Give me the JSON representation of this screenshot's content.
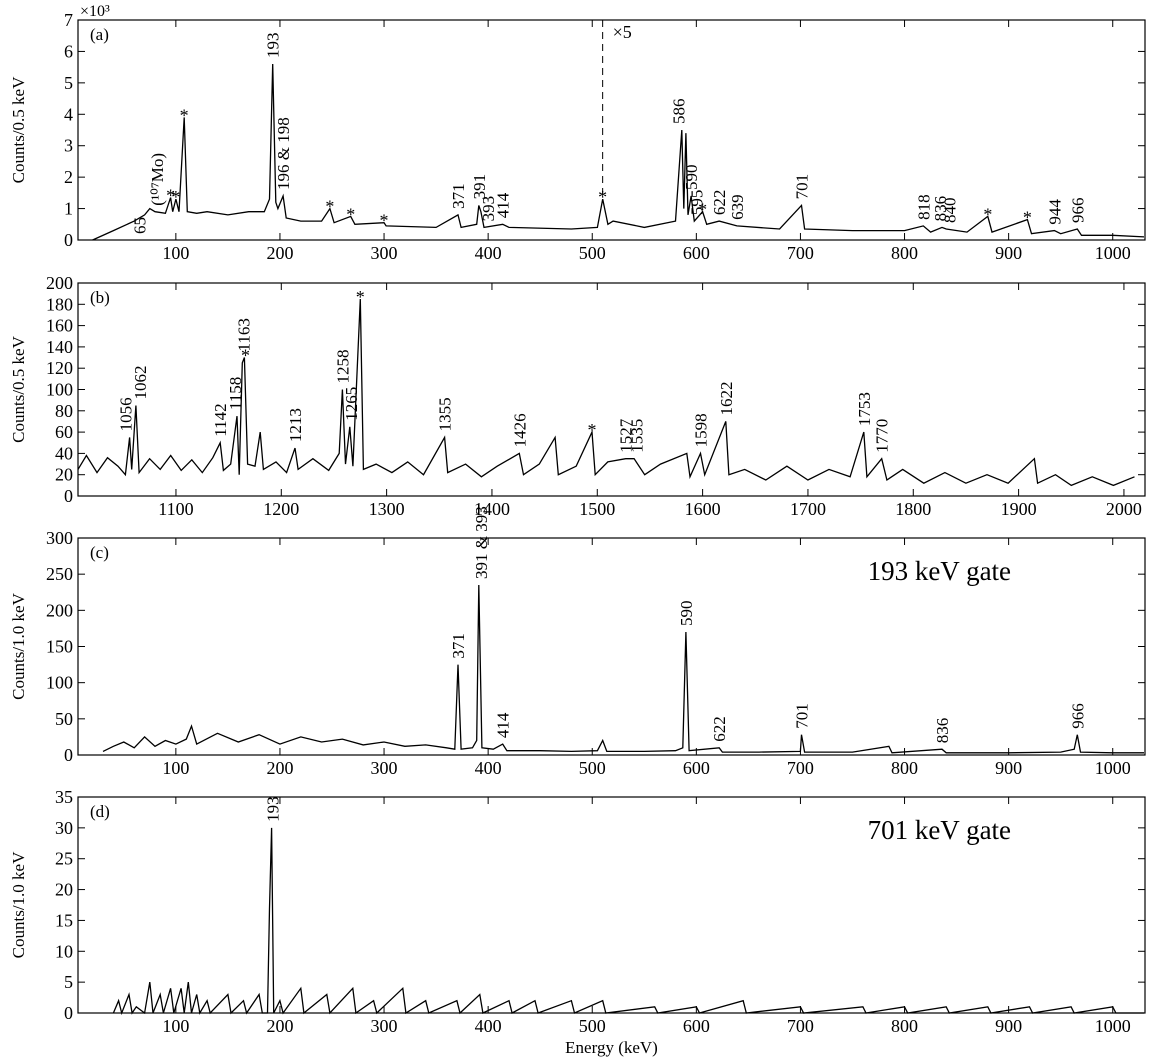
{
  "chart_data": [
    {
      "type": "line",
      "panel_label": "(a)",
      "ylabel": "Counts/0.5 keV",
      "y_scale_label": "×10³",
      "scale_change_label": "×5",
      "scale_change_x": 510,
      "xlim": [
        6,
        1031
      ],
      "ylim": [
        0,
        7
      ],
      "xticks": [
        100,
        200,
        300,
        400,
        500,
        600,
        700,
        800,
        900,
        1000
      ],
      "yticks": [
        0,
        1,
        2,
        3,
        4,
        5,
        6,
        7
      ],
      "color": "#000000",
      "x": [
        20,
        40,
        60,
        70,
        75,
        80,
        90,
        95,
        97,
        100,
        103,
        108,
        111,
        120,
        130,
        150,
        170,
        185,
        190,
        193,
        196,
        198,
        203,
        206,
        220,
        240,
        248,
        252,
        268,
        272,
        300,
        302,
        350,
        371,
        374,
        389,
        391,
        393,
        396,
        414,
        420,
        480,
        505,
        510,
        515,
        520,
        550,
        580,
        586,
        588,
        590,
        592,
        595,
        598,
        606,
        610,
        622,
        639,
        680,
        701,
        704,
        750,
        800,
        818,
        825,
        836,
        840,
        860,
        880,
        884,
        918,
        922,
        944,
        950,
        966,
        970,
        1000,
        1030
      ],
      "values": [
        0,
        0.3,
        0.6,
        0.8,
        1.0,
        0.9,
        0.85,
        1.35,
        0.9,
        1.3,
        0.9,
        3.9,
        0.9,
        0.85,
        0.9,
        0.8,
        0.9,
        0.9,
        1.3,
        5.6,
        1.2,
        1.0,
        1.4,
        0.7,
        0.6,
        0.6,
        1.0,
        0.55,
        0.75,
        0.5,
        0.55,
        0.45,
        0.4,
        0.8,
        0.4,
        0.5,
        1.1,
        0.9,
        0.4,
        0.5,
        0.4,
        0.35,
        0.4,
        1.3,
        0.5,
        0.6,
        0.4,
        0.6,
        3.5,
        1.0,
        3.4,
        0.8,
        1.4,
        0.6,
        0.9,
        0.5,
        0.6,
        0.45,
        0.35,
        1.1,
        0.35,
        0.3,
        0.3,
        0.45,
        0.25,
        0.4,
        0.35,
        0.25,
        0.75,
        0.25,
        0.65,
        0.2,
        0.3,
        0.2,
        0.35,
        0.15,
        0.15,
        0.1
      ],
      "annotations": [
        {
          "text": "65",
          "x": 65
        },
        {
          "text": "(¹⁰⁷Mo)",
          "x": 82
        },
        {
          "text": "*",
          "x": 95
        },
        {
          "text": "*",
          "x": 100
        },
        {
          "text": "*",
          "x": 108
        },
        {
          "text": "193",
          "x": 193
        },
        {
          "text": "196 & 198",
          "x": 203
        },
        {
          "text": "*",
          "x": 248
        },
        {
          "text": "*",
          "x": 268
        },
        {
          "text": "*",
          "x": 300
        },
        {
          "text": "371",
          "x": 371
        },
        {
          "text": "391",
          "x": 391
        },
        {
          "text": "393",
          "x": 400
        },
        {
          "text": "414",
          "x": 414
        },
        {
          "text": "*",
          "x": 510
        },
        {
          "text": "586",
          "x": 583
        },
        {
          "text": "590",
          "x": 595
        },
        {
          "text": "595",
          "x": 600
        },
        {
          "text": "*",
          "x": 606
        },
        {
          "text": "622",
          "x": 622
        },
        {
          "text": "639",
          "x": 639
        },
        {
          "text": "701",
          "x": 701
        },
        {
          "text": "818",
          "x": 818
        },
        {
          "text": "836",
          "x": 834
        },
        {
          "text": "840",
          "x": 843
        },
        {
          "text": "*",
          "x": 880
        },
        {
          "text": "*",
          "x": 918
        },
        {
          "text": "944",
          "x": 944
        },
        {
          "text": "966",
          "x": 966
        }
      ]
    },
    {
      "type": "line",
      "panel_label": "(b)",
      "ylabel": "Counts/0.5 keV",
      "xlim": [
        1007,
        2020
      ],
      "ylim": [
        0,
        200
      ],
      "xticks": [
        1100,
        1200,
        1300,
        1400,
        1500,
        1600,
        1700,
        1800,
        1900,
        2000
      ],
      "yticks": [
        0,
        20,
        40,
        60,
        80,
        100,
        120,
        140,
        160,
        180,
        200
      ],
      "color": "#000000",
      "x": [
        1007,
        1015,
        1025,
        1035,
        1045,
        1052,
        1056,
        1058,
        1062,
        1065,
        1075,
        1085,
        1095,
        1105,
        1115,
        1125,
        1135,
        1142,
        1145,
        1152,
        1158,
        1160,
        1163,
        1165,
        1168,
        1175,
        1180,
        1183,
        1195,
        1205,
        1213,
        1216,
        1230,
        1245,
        1255,
        1258,
        1261,
        1265,
        1268,
        1275,
        1278,
        1290,
        1305,
        1320,
        1335,
        1355,
        1358,
        1375,
        1390,
        1405,
        1426,
        1430,
        1445,
        1460,
        1463,
        1480,
        1495,
        1498,
        1510,
        1527,
        1535,
        1545,
        1560,
        1585,
        1588,
        1598,
        1602,
        1622,
        1625,
        1640,
        1660,
        1680,
        1700,
        1720,
        1740,
        1753,
        1756,
        1770,
        1775,
        1790,
        1810,
        1830,
        1850,
        1870,
        1890,
        1915,
        1918,
        1935,
        1950,
        1970,
        1990,
        2010
      ],
      "values": [
        25,
        38,
        22,
        36,
        28,
        20,
        55,
        25,
        85,
        22,
        35,
        25,
        38,
        24,
        34,
        22,
        36,
        50,
        24,
        30,
        75,
        20,
        125,
        130,
        30,
        28,
        60,
        25,
        32,
        22,
        45,
        25,
        35,
        24,
        40,
        100,
        30,
        65,
        28,
        185,
        25,
        30,
        22,
        32,
        20,
        55,
        22,
        30,
        18,
        28,
        40,
        20,
        30,
        55,
        20,
        28,
        60,
        20,
        32,
        35,
        35,
        20,
        30,
        40,
        18,
        40,
        20,
        70,
        20,
        25,
        15,
        28,
        15,
        25,
        18,
        60,
        18,
        35,
        15,
        25,
        12,
        22,
        12,
        20,
        12,
        35,
        12,
        20,
        10,
        18,
        10,
        18
      ],
      "annotations": [
        {
          "text": "1056",
          "x": 1052
        },
        {
          "text": "1062",
          "x": 1066
        },
        {
          "text": "1142",
          "x": 1142
        },
        {
          "text": "1158",
          "x": 1156
        },
        {
          "text": "1163",
          "x": 1164
        },
        {
          "text": "*",
          "x": 1166
        },
        {
          "text": "1213",
          "x": 1213
        },
        {
          "text": "1258",
          "x": 1258
        },
        {
          "text": "1265",
          "x": 1266
        },
        {
          "text": "*",
          "x": 1275
        },
        {
          "text": "1355",
          "x": 1355
        },
        {
          "text": "1426",
          "x": 1426
        },
        {
          "text": "*",
          "x": 1495
        },
        {
          "text": "1527",
          "x": 1527
        },
        {
          "text": "1535",
          "x": 1537
        },
        {
          "text": "1598",
          "x": 1598
        },
        {
          "text": "1622",
          "x": 1622
        },
        {
          "text": "1753",
          "x": 1753
        },
        {
          "text": "1770",
          "x": 1770
        }
      ]
    },
    {
      "type": "line",
      "panel_label": "(c)",
      "ylabel": "Counts/1.0 keV",
      "gate_label": "193 keV gate",
      "xlim": [
        6,
        1031
      ],
      "ylim": [
        0,
        300
      ],
      "xticks": [
        100,
        200,
        300,
        400,
        500,
        600,
        700,
        800,
        900,
        1000
      ],
      "yticks": [
        0,
        50,
        100,
        150,
        200,
        250,
        300
      ],
      "color": "#000000",
      "x": [
        30,
        40,
        50,
        60,
        70,
        80,
        90,
        100,
        110,
        115,
        120,
        140,
        160,
        180,
        200,
        220,
        240,
        260,
        280,
        300,
        320,
        340,
        360,
        368,
        371,
        374,
        385,
        389,
        391,
        394,
        405,
        414,
        418,
        450,
        480,
        505,
        510,
        514,
        550,
        580,
        587,
        590,
        593,
        622,
        625,
        660,
        700,
        701,
        704,
        750,
        785,
        788,
        836,
        840,
        900,
        950,
        963,
        966,
        969,
        1000,
        1030
      ],
      "values": [
        5,
        12,
        18,
        10,
        25,
        12,
        20,
        15,
        22,
        40,
        15,
        30,
        18,
        28,
        15,
        25,
        18,
        22,
        14,
        18,
        12,
        14,
        10,
        8,
        125,
        8,
        10,
        20,
        235,
        10,
        8,
        15,
        6,
        6,
        5,
        6,
        20,
        5,
        5,
        6,
        10,
        170,
        6,
        10,
        4,
        4,
        5,
        28,
        4,
        4,
        12,
        3,
        8,
        3,
        3,
        4,
        8,
        28,
        4,
        3,
        3
      ],
      "annotations": [
        {
          "text": "371",
          "x": 371
        },
        {
          "text": "391 & 393",
          "x": 393
        },
        {
          "text": "414",
          "x": 414
        },
        {
          "text": "590",
          "x": 590
        },
        {
          "text": "622",
          "x": 622
        },
        {
          "text": "701",
          "x": 701
        },
        {
          "text": "836",
          "x": 836
        },
        {
          "text": "966",
          "x": 966
        }
      ]
    },
    {
      "type": "line",
      "panel_label": "(d)",
      "ylabel": "Counts/1.0 keV",
      "gate_label": "701 keV gate",
      "xlabel": "Energy (keV)",
      "xlim": [
        6,
        1031
      ],
      "ylim": [
        0,
        35
      ],
      "xticks": [
        100,
        200,
        300,
        400,
        500,
        600,
        700,
        800,
        900,
        1000
      ],
      "yticks": [
        0,
        5,
        10,
        15,
        20,
        25,
        30,
        35
      ],
      "color": "#000000",
      "x": [
        40,
        45,
        48,
        55,
        58,
        62,
        70,
        75,
        78,
        85,
        88,
        95,
        98,
        105,
        108,
        112,
        115,
        120,
        123,
        130,
        133,
        150,
        153,
        165,
        168,
        180,
        183,
        188,
        190,
        192,
        194,
        200,
        203,
        220,
        223,
        245,
        248,
        270,
        273,
        290,
        293,
        318,
        321,
        340,
        343,
        370,
        373,
        392,
        395,
        420,
        423,
        445,
        448,
        480,
        483,
        510,
        513,
        560,
        563,
        600,
        603,
        645,
        648,
        700,
        703,
        760,
        763,
        800,
        803,
        840,
        843,
        880,
        883,
        920,
        923,
        960,
        963,
        1000,
        1003,
        1030
      ],
      "values": [
        0,
        2,
        0,
        3,
        0,
        1,
        0,
        5,
        0,
        3,
        0,
        4,
        0,
        4,
        0,
        5,
        0,
        3,
        0,
        2,
        0,
        3,
        0,
        2,
        0,
        3,
        0,
        0,
        17,
        30,
        0,
        2,
        0,
        4,
        0,
        3,
        0,
        4,
        0,
        2,
        0,
        4,
        0,
        2,
        0,
        2,
        0,
        3,
        0,
        2,
        0,
        2,
        0,
        2,
        0,
        2,
        0,
        1,
        0,
        1,
        0,
        2,
        0,
        1,
        0,
        1,
        0,
        1,
        0,
        1,
        0,
        1,
        0,
        1,
        0,
        1,
        0,
        1,
        0,
        0
      ],
      "annotations": [
        {
          "text": "193",
          "x": 193
        }
      ]
    }
  ]
}
